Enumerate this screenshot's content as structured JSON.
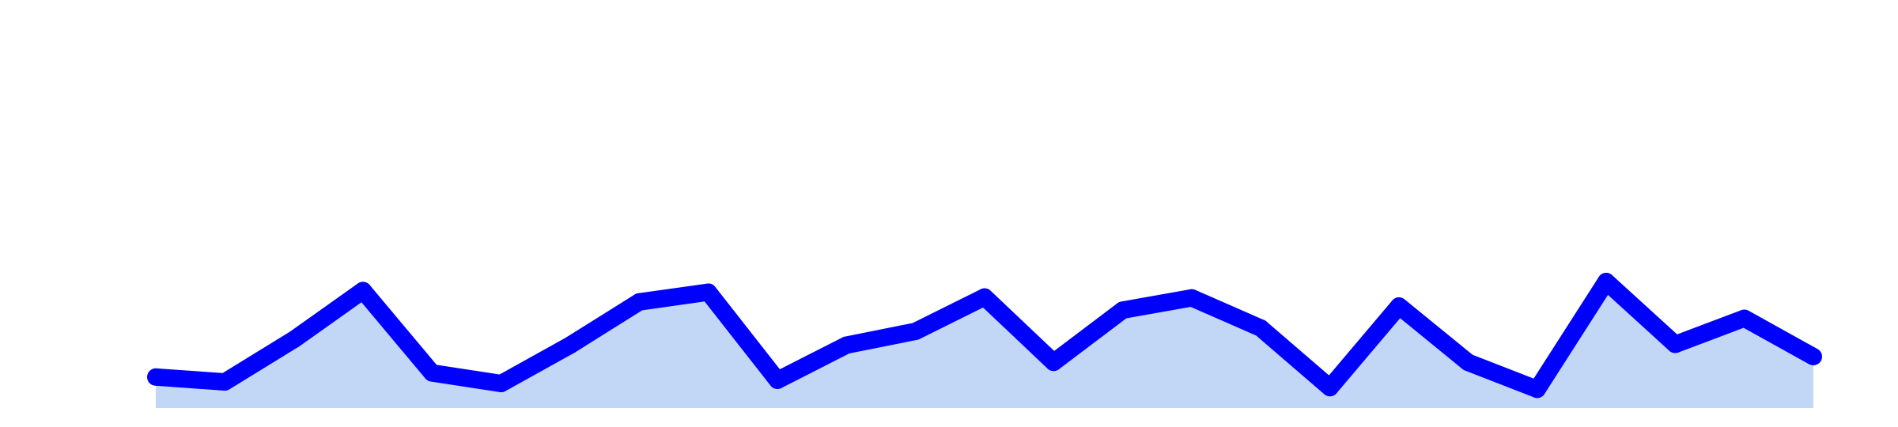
{
  "chart_data": {
    "type": "area",
    "x": [
      0,
      1,
      2,
      3,
      4,
      5,
      6,
      7,
      8,
      9,
      10,
      11,
      12,
      13,
      14,
      15,
      16,
      17,
      18,
      19,
      20,
      21,
      22,
      23,
      24
    ],
    "series": [
      {
        "values": [
          38,
          32,
          84,
          144,
          43,
          30,
          77,
          130,
          142,
          34,
          77,
          94,
          136,
          56,
          120,
          135,
          98,
          25,
          125,
          56,
          23,
          155,
          78,
          110,
          63
        ],
        "line_color": "#0000ff",
        "fill_color": "#c2d6f5"
      }
    ],
    "ylim": [
      0,
      500
    ],
    "grid": false,
    "axes_visible": false,
    "title": "",
    "xlabel": "",
    "ylabel": ""
  }
}
